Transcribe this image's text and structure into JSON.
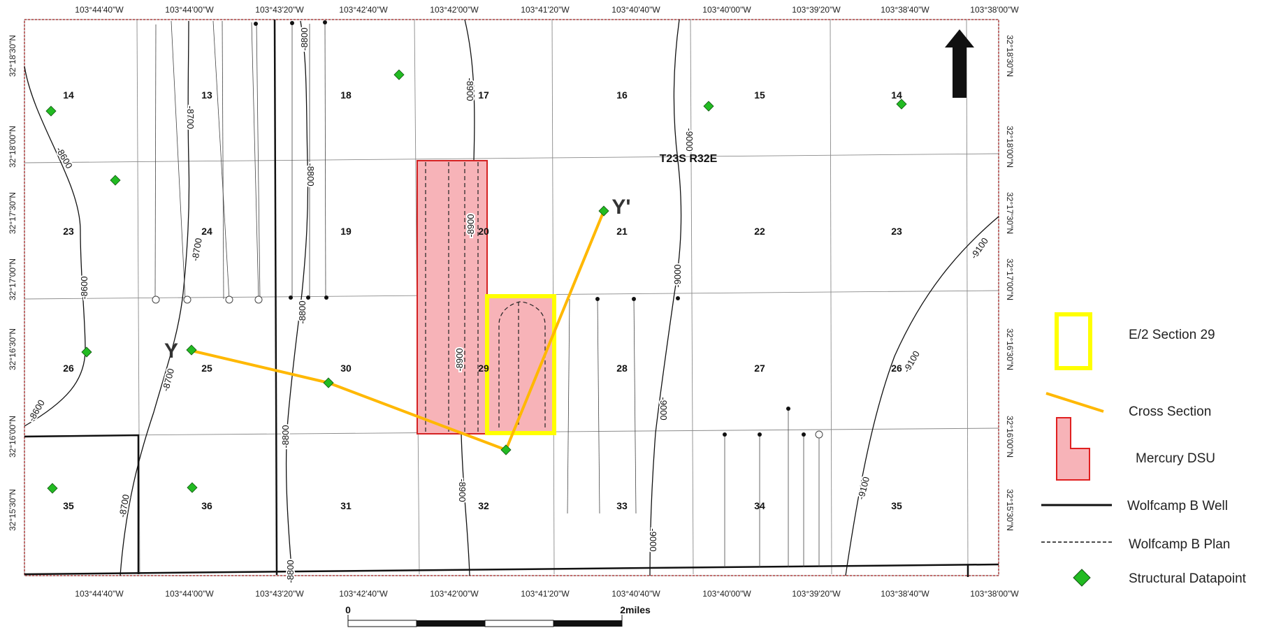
{
  "map": {
    "top_longitudes": [
      "103°44'40\"W",
      "103°44'00\"W",
      "103°43'20\"W",
      "103°42'40\"W",
      "103°42'00\"W",
      "103°41'20\"W",
      "103°40'40\"W",
      "103°40'00\"W",
      "103°39'20\"W",
      "103°38'40\"W",
      "103°38'00\"W"
    ],
    "bottom_longitudes": [
      "103°44'40\"W",
      "103°44'00\"W",
      "103°43'20\"W",
      "103°42'40\"W",
      "103°42'00\"W",
      "103°41'20\"W",
      "103°40'40\"W",
      "103°40'00\"W",
      "103°39'20\"W",
      "103°38'40\"W",
      "103°38'00\"W"
    ],
    "left_latitudes": [
      "32°18'30\"N",
      "32°18'00\"N",
      "32°17'30\"N",
      "32°17'00\"N",
      "32°16'30\"N",
      "32°16'00\"N",
      "32°15'30\"N"
    ],
    "right_latitudes": [
      "32°18'30\"N",
      "32°18'00\"N",
      "32°17'30\"N",
      "32°17'00\"N",
      "32°16'30\"N",
      "32°16'00\"N",
      "32°15'30\"N"
    ],
    "sections": [
      "14",
      "13",
      "18",
      "17",
      "16",
      "15",
      "14",
      "23",
      "24",
      "19",
      "20",
      "21",
      "22",
      "23",
      "26",
      "25",
      "30",
      "29",
      "28",
      "27",
      "26",
      "35",
      "36",
      "31",
      "32",
      "33",
      "34",
      "35"
    ],
    "township_label": "T23S R32E",
    "cross_section_start": "Y",
    "cross_section_end": "Y'",
    "contour_labels": [
      "-8600",
      "-8600",
      "-8600",
      "-8700",
      "-8700",
      "-8700",
      "-8700",
      "-8800",
      "-8800",
      "-8800",
      "-8800",
      "-8800",
      "-8900",
      "-8900",
      "-8900",
      "-8900",
      "-9000",
      "-9000",
      "-9000",
      "-9000",
      "-9100",
      "-9100",
      "-9100"
    ],
    "colors": {
      "frame_dash": "#e83030",
      "dsu_fill": "#f7b3b8",
      "dsu_stroke": "#d42222",
      "e2_section": "#ffff00",
      "cross_section": "#ffb800",
      "datapoint": "#22bb22"
    }
  },
  "scale": {
    "start_label": "0",
    "end_label": "2miles"
  },
  "north_arrow": {
    "icon": "north-arrow-icon"
  },
  "legend": {
    "items": [
      {
        "label": "E/2 Section 29",
        "icon": "yellow-rectangle-icon"
      },
      {
        "label": "Cross Section",
        "icon": "orange-line-icon"
      },
      {
        "label": "Mercury DSU",
        "icon": "red-l-shape-icon"
      },
      {
        "label": "Wolfcamp B Well",
        "icon": "solid-line-icon"
      },
      {
        "label": "Wolfcamp B Plan",
        "icon": "dashed-line-icon"
      },
      {
        "label": "Structural Datapoint",
        "icon": "green-diamond-icon"
      }
    ]
  }
}
